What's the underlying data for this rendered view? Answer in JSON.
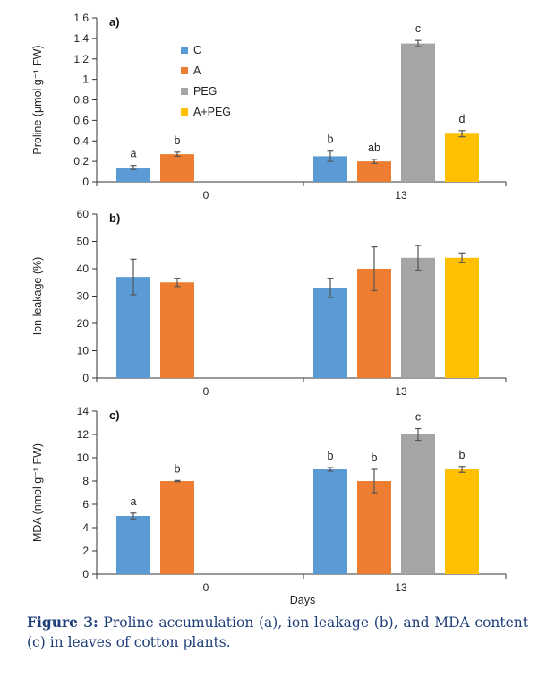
{
  "chart_data": [
    {
      "type": "bar",
      "panel_label": "a)",
      "ylabel": "Proline (μmol g⁻¹ FW)",
      "ylim": [
        0,
        1.6
      ],
      "yticks": [
        "0",
        "0.2",
        "0.4",
        "0.6",
        "0.8",
        "1",
        "1.2",
        "1.4",
        "1.6"
      ],
      "categories": [
        "0",
        "13"
      ],
      "series": [
        {
          "name": "C",
          "values": [
            0.14,
            0.25
          ],
          "errors": [
            0.02,
            0.05
          ],
          "letters": [
            "a",
            "b"
          ]
        },
        {
          "name": "A",
          "values": [
            0.27,
            0.2
          ],
          "errors": [
            0.02,
            0.02
          ],
          "letters": [
            "b",
            "ab"
          ]
        },
        {
          "name": "PEG",
          "values": [
            null,
            1.35
          ],
          "errors": [
            null,
            0.03
          ],
          "letters": [
            "",
            "c"
          ]
        },
        {
          "name": "A+PEG",
          "values": [
            null,
            0.47
          ],
          "errors": [
            null,
            0.03
          ],
          "letters": [
            "",
            "d"
          ]
        }
      ],
      "legend": "top-left"
    },
    {
      "type": "bar",
      "panel_label": "b)",
      "ylabel": "Ion leakage (%)",
      "ylim": [
        0,
        60
      ],
      "yticks": [
        "0",
        "10",
        "20",
        "30",
        "40",
        "50",
        "60"
      ],
      "categories": [
        "0",
        "13"
      ],
      "series": [
        {
          "name": "C",
          "values": [
            37,
            33
          ],
          "errors": [
            6.5,
            3.5
          ]
        },
        {
          "name": "A",
          "values": [
            35,
            40
          ],
          "errors": [
            1.5,
            8
          ]
        },
        {
          "name": "PEG",
          "values": [
            null,
            44
          ],
          "errors": [
            null,
            4.5
          ]
        },
        {
          "name": "A+PEG",
          "values": [
            null,
            44
          ],
          "errors": [
            null,
            1.8
          ]
        }
      ]
    },
    {
      "type": "bar",
      "panel_label": "c)",
      "ylabel": "MDA (nmol g⁻¹ FW)",
      "xlabel": "Days",
      "ylim": [
        0,
        14
      ],
      "yticks": [
        "0",
        "2",
        "4",
        "6",
        "8",
        "10",
        "12",
        "14"
      ],
      "categories": [
        "0",
        "13"
      ],
      "series": [
        {
          "name": "C",
          "values": [
            5,
            9
          ],
          "errors": [
            0.25,
            0.15
          ],
          "letters": [
            "a",
            "b"
          ]
        },
        {
          "name": "A",
          "values": [
            8,
            8
          ],
          "errors": [
            0.05,
            1.0
          ],
          "letters": [
            "b",
            "b"
          ]
        },
        {
          "name": "PEG",
          "values": [
            null,
            12
          ],
          "errors": [
            null,
            0.5
          ],
          "letters": [
            "",
            "c"
          ]
        },
        {
          "name": "A+PEG",
          "values": [
            null,
            9
          ],
          "errors": [
            null,
            0.25
          ],
          "letters": [
            "",
            "b"
          ]
        }
      ]
    }
  ],
  "colors": {
    "C": "#5b9bd5",
    "A": "#ed7d31",
    "PEG": "#a5a5a5",
    "A+PEG": "#ffc000"
  },
  "caption": {
    "label": "Figure 3:",
    "text": " Proline accumulation (a), ion leakage (b), and MDA content (c) in leaves of cotton plants."
  }
}
